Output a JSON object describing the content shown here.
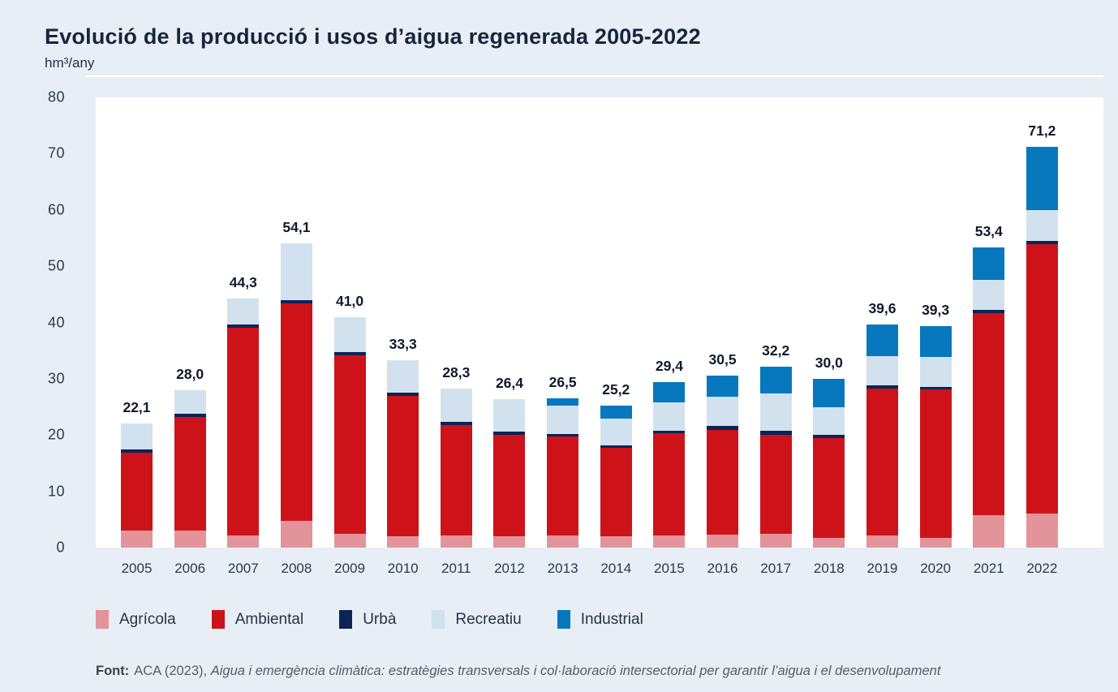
{
  "header": {
    "title": "Evolució de la producció i usos d’aigua regenerada 2005-2022",
    "unit_label": "hm³/any"
  },
  "footer": {
    "label": "Font:",
    "source": "ACA (2023),",
    "work_title": "Aigua i emergència climàtica: estratègies transversals i col·laboració intersectorial per garantir l’aigua i el desenvolupament"
  },
  "colors": {
    "page_background": "#e7eef6",
    "plot_background": "#ffffff",
    "title_text": "#18253c",
    "axis_text": "#2b3850",
    "value_label_text": "#10192b",
    "footer_text": "#525e6b"
  },
  "chart_data": {
    "type": "bar",
    "subtype": "stacked",
    "title": "Evolució de la producció i usos d’aigua regenerada 2005-2022",
    "xlabel": "",
    "ylabel": "hm³/any",
    "ylim": [
      0,
      80
    ],
    "yticks": [
      0,
      10,
      20,
      30,
      40,
      50,
      60,
      70,
      80
    ],
    "grid": false,
    "legend_position": "bottom",
    "categories": [
      "2005",
      "2006",
      "2007",
      "2008",
      "2009",
      "2010",
      "2011",
      "2012",
      "2013",
      "2014",
      "2015",
      "2016",
      "2017",
      "2018",
      "2019",
      "2020",
      "2021",
      "2022"
    ],
    "series": [
      {
        "name": "Agrícola",
        "color": "#e2949a",
        "values": [
          3.0,
          3.1,
          2.2,
          4.8,
          2.5,
          2.0,
          2.1,
          2.0,
          2.2,
          2.0,
          2.2,
          2.3,
          2.4,
          1.8,
          2.1,
          1.8,
          5.8,
          6.0
        ]
      },
      {
        "name": "Ambiental",
        "color": "#cd1319",
        "values": [
          13.9,
          20.1,
          36.9,
          38.6,
          31.6,
          25.0,
          19.6,
          18.0,
          17.5,
          15.7,
          18.1,
          18.6,
          17.7,
          17.6,
          26.2,
          26.3,
          35.9,
          47.9
        ]
      },
      {
        "name": "Urbà",
        "color": "#0c2356",
        "values": [
          0.6,
          0.6,
          0.6,
          0.6,
          0.6,
          0.6,
          0.6,
          0.6,
          0.5,
          0.5,
          0.4,
          0.7,
          0.6,
          0.6,
          0.5,
          0.5,
          0.5,
          0.6
        ]
      },
      {
        "name": "Recreatiu",
        "color": "#d1e2ee",
        "values": [
          4.6,
          4.2,
          4.6,
          10.1,
          6.3,
          5.7,
          6.0,
          5.8,
          5.1,
          4.7,
          5.1,
          5.2,
          6.7,
          4.9,
          5.2,
          5.3,
          5.4,
          5.4
        ]
      },
      {
        "name": "Industrial",
        "color": "#0778be",
        "values": [
          0,
          0,
          0,
          0,
          0,
          0,
          0,
          0,
          1.2,
          2.3,
          3.6,
          3.7,
          4.8,
          5.1,
          5.6,
          5.4,
          5.8,
          11.3
        ]
      }
    ],
    "totals": [
      22.1,
      28.0,
      44.3,
      54.1,
      41.0,
      33.3,
      28.3,
      26.4,
      26.5,
      25.2,
      29.4,
      30.5,
      32.2,
      30.0,
      39.6,
      39.3,
      53.4,
      71.2
    ],
    "totals_labels": [
      "22,1",
      "28,0",
      "44,3",
      "54,1",
      "41,0",
      "33,3",
      "28,3",
      "26,4",
      "26,5",
      "25,2",
      "29,4",
      "30,5",
      "32,2",
      "30,0",
      "39,6",
      "39,3",
      "53,4",
      "71,2"
    ]
  }
}
